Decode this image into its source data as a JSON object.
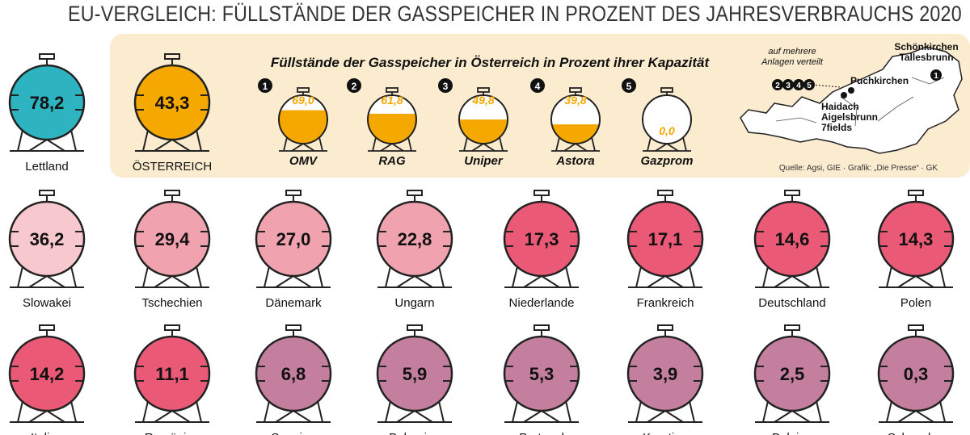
{
  "title": "EU-VERGLEICH: FÜLLSTÄNDE DER GASSPEICHER IN PROZENT DES JAHRESVERBRAUCHS 2020",
  "austria_subtitle": "Füllstände der Gasspeicher in Österreich in Prozent ihrer Kapazität",
  "source": "Quelle: Agsi, GIE · Grafik: „Die Presse“ · GK",
  "map": {
    "note": "auf mehrere Anlagen verteilt",
    "schoenkirchen": "Schönkirchen Tallesbrunn",
    "puchkirchen": "Puchkirchen",
    "haidach": "Haidach Aigelsbrunn 7fields",
    "marker_single": "1",
    "marker_group": [
      "2",
      "3",
      "4",
      "5"
    ]
  },
  "colors": {
    "lettland": "#2eb3c0",
    "oesterreich": "#f5a800",
    "level1": "#f7c8cd",
    "level2": "#f0a3ae",
    "level3": "#ea5a77",
    "level4": "#c47f9f",
    "operator_fill": "#f5a800",
    "operator_text": "#f5a800",
    "tank_outline": "#222222",
    "panel_bg": "#fbecd0"
  },
  "chart_data": [
    {
      "type": "pictogram",
      "title": "EU-Vergleich: Füllstände der Gasspeicher in Prozent des Jahresverbrauchs 2020",
      "unit": "%",
      "categories": [
        "Lettland",
        "ÖSTERREICH",
        "Slowakei",
        "Tschechien",
        "Dänemark",
        "Ungarn",
        "Niederlande",
        "Frankreich",
        "Deutschland",
        "Polen",
        "Italien",
        "Rumänien",
        "Spanien",
        "Bulgarien",
        "Portugal",
        "Kroatien",
        "Belgien",
        "Schweden"
      ],
      "values": [
        78.2,
        43.3,
        36.2,
        29.4,
        27.0,
        22.8,
        17.3,
        17.1,
        14.6,
        14.3,
        14.2,
        11.1,
        6.8,
        5.9,
        5.3,
        3.9,
        2.5,
        0.3
      ],
      "labels": [
        "78,2",
        "43,3",
        "36,2",
        "29,4",
        "27,0",
        "22,8",
        "17,3",
        "17,1",
        "14,6",
        "14,3",
        "14,2",
        "11,1",
        "6,8",
        "5,9",
        "5,3",
        "3,9",
        "2,5",
        "0,3"
      ]
    },
    {
      "type": "pictogram",
      "title": "Füllstände der Gasspeicher in Österreich in Prozent ihrer Kapazität",
      "unit": "%",
      "categories": [
        "OMV",
        "RAG",
        "Uniper",
        "Astora",
        "Gazprom"
      ],
      "markers": [
        "1",
        "2",
        "3",
        "4",
        "5"
      ],
      "values": [
        69.0,
        61.8,
        49.8,
        39.8,
        0.0
      ],
      "labels": [
        "69,0",
        "61,8",
        "49,8",
        "39,8",
        "0,0"
      ]
    }
  ]
}
